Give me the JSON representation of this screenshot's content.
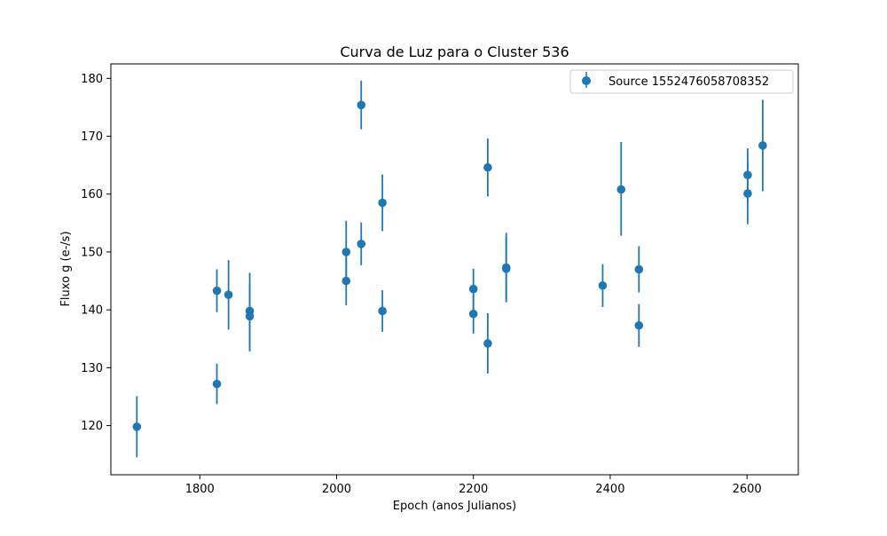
{
  "chart_data": {
    "type": "scatter",
    "title": "Curva de Luz para o Cluster 536",
    "xlabel": "Epoch (anos Julianos)",
    "ylabel": "Fluxo g (e-/s)",
    "xlim": [
      1670,
      2675
    ],
    "ylim": [
      111.5,
      182.5
    ],
    "xticks": [
      1800,
      2000,
      2200,
      2400,
      2600
    ],
    "yticks": [
      120,
      130,
      140,
      150,
      160,
      170,
      180
    ],
    "xtick_labels": [
      "1800",
      "2000",
      "2200",
      "2400",
      "2600"
    ],
    "ytick_labels": [
      "120",
      "130",
      "140",
      "150",
      "160",
      "170",
      "180"
    ],
    "grid": false,
    "legend_position": "top-right",
    "series": [
      {
        "name": "Source 1552476058708352",
        "color": "#1f77b4",
        "marker": "circle",
        "errorbars": true,
        "points": [
          {
            "x": 1708,
            "y": 119.8,
            "err_low": 5.3,
            "err_high": 5.3
          },
          {
            "x": 1825,
            "y": 127.2,
            "err_low": 3.5,
            "err_high": 3.5
          },
          {
            "x": 1825,
            "y": 143.3,
            "err_low": 3.7,
            "err_high": 3.7
          },
          {
            "x": 1842,
            "y": 142.6,
            "err_low": 6.0,
            "err_high": 6.0
          },
          {
            "x": 1873,
            "y": 139.8,
            "err_low": 7.0,
            "err_high": 6.6
          },
          {
            "x": 1873,
            "y": 138.9,
            "err_low": 5.6,
            "err_high": 5.6
          },
          {
            "x": 2014,
            "y": 150.0,
            "err_low": 5.4,
            "err_high": 5.4
          },
          {
            "x": 2014,
            "y": 145.0,
            "err_low": 4.2,
            "err_high": 4.2
          },
          {
            "x": 2036,
            "y": 175.4,
            "err_low": 4.2,
            "err_high": 4.2
          },
          {
            "x": 2036,
            "y": 151.4,
            "err_low": 3.7,
            "err_high": 3.7
          },
          {
            "x": 2067,
            "y": 158.5,
            "err_low": 4.9,
            "err_high": 4.9
          },
          {
            "x": 2067,
            "y": 139.8,
            "err_low": 3.6,
            "err_high": 3.6
          },
          {
            "x": 2200,
            "y": 143.6,
            "err_low": 3.5,
            "err_high": 3.5
          },
          {
            "x": 2200,
            "y": 139.3,
            "err_low": 3.4,
            "err_high": 3.4
          },
          {
            "x": 2221,
            "y": 164.6,
            "err_low": 5.0,
            "err_high": 5.0
          },
          {
            "x": 2221,
            "y": 134.2,
            "err_low": 5.2,
            "err_high": 5.2
          },
          {
            "x": 2248,
            "y": 147.3,
            "err_low": 6.0,
            "err_high": 6.0
          },
          {
            "x": 2248,
            "y": 147.1,
            "err_low": 5.5,
            "err_high": 5.5
          },
          {
            "x": 2389,
            "y": 144.2,
            "err_low": 3.7,
            "err_high": 3.7
          },
          {
            "x": 2416,
            "y": 160.8,
            "err_low": 8.0,
            "err_high": 8.2
          },
          {
            "x": 2442,
            "y": 147.0,
            "err_low": 4.0,
            "err_high": 4.0
          },
          {
            "x": 2442,
            "y": 137.3,
            "err_low": 3.7,
            "err_high": 3.7
          },
          {
            "x": 2601,
            "y": 163.3,
            "err_low": 4.6,
            "err_high": 4.6
          },
          {
            "x": 2601,
            "y": 160.1,
            "err_low": 5.3,
            "err_high": 5.3
          },
          {
            "x": 2623,
            "y": 168.4,
            "err_low": 7.9,
            "err_high": 7.9
          }
        ]
      }
    ]
  }
}
